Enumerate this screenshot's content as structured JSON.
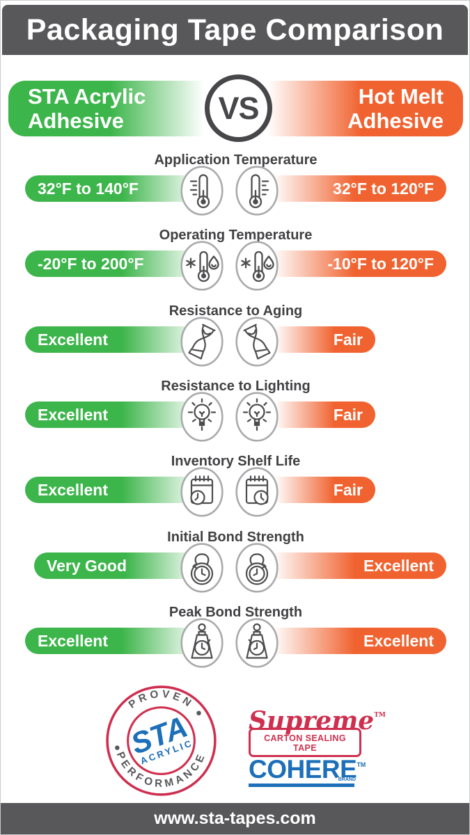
{
  "page": {
    "title": "Packaging Tape Comparison",
    "website": "www.sta-tapes.com"
  },
  "banner": {
    "left": {
      "line1": "STA Acrylic",
      "line2": "Adhesive"
    },
    "vs": "VS",
    "right": {
      "line1": "Hot Melt",
      "line2": "Adhesive"
    }
  },
  "rows": [
    {
      "title": "Application Temperature",
      "icon": "thermometer",
      "left": {
        "value": "32°F to 140°F",
        "bar": "full"
      },
      "right": {
        "value": "32°F to 120°F",
        "bar": "full"
      }
    },
    {
      "title": "Operating Temperature",
      "icon": "thermometer-hot-cold",
      "left": {
        "value": "-20°F to 200°F",
        "bar": "full"
      },
      "right": {
        "value": "-10°F to 120°F",
        "bar": "full"
      }
    },
    {
      "title": "Resistance to Aging",
      "icon": "hourglass",
      "left": {
        "value": "Excellent",
        "bar": "full"
      },
      "right": {
        "value": "Fair",
        "bar": "short"
      }
    },
    {
      "title": "Resistance to Lighting",
      "icon": "light-bulb",
      "left": {
        "value": "Excellent",
        "bar": "full"
      },
      "right": {
        "value": "Fair",
        "bar": "short"
      }
    },
    {
      "title": "Inventory Shelf Life",
      "icon": "calendar-clock",
      "left": {
        "value": "Excellent",
        "bar": "full"
      },
      "right": {
        "value": "Fair",
        "bar": "short"
      }
    },
    {
      "title": "Initial Bond Strength",
      "icon": "weight-stopwatch",
      "left": {
        "value": "Very Good",
        "bar": "inset"
      },
      "right": {
        "value": "Excellent",
        "bar": "full"
      }
    },
    {
      "title": "Peak Bond Strength",
      "icon": "scale-weight-stopwatch",
      "left": {
        "value": "Excellent",
        "bar": "full"
      },
      "right": {
        "value": "Excellent",
        "bar": "full"
      }
    }
  ],
  "footer": {
    "stamp": {
      "top_arc": "PROVEN",
      "bottom_arc": "PERFORMANCE",
      "center_primary": "STA",
      "center_secondary": "ACRYLIC"
    },
    "supreme": {
      "name": "Supreme",
      "trademark": "TM",
      "tagline": "CARTON SEALING TAPE"
    },
    "cohere": {
      "name": "COHERE",
      "trademark": "TM",
      "sub": "BRAND"
    }
  },
  "colors": {
    "green": "#3CB54A",
    "orange": "#F0622F",
    "dark_gray": "#58585A",
    "stamp_red": "#CF2F4F",
    "brand_blue": "#1C6FB8",
    "icon_stroke_gray": "#4D4D4F",
    "icon_circle_gray": "#A9AAAC"
  }
}
